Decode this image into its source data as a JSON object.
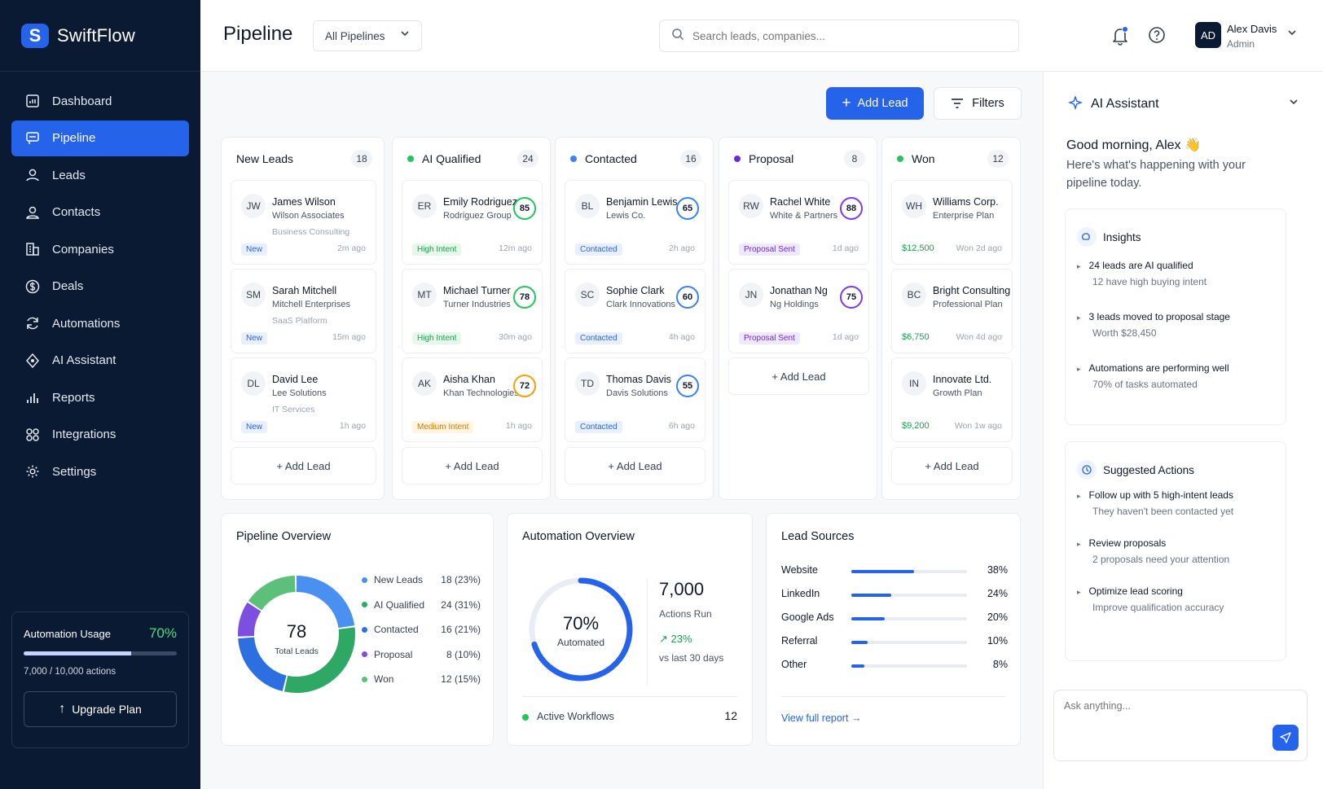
{
  "app": {
    "name": "SwiftFlow",
    "logo_letter": "S"
  },
  "sidebar": {
    "items": [
      {
        "label": "Dashboard",
        "icon": "dashboard-icon"
      },
      {
        "label": "Pipeline",
        "icon": "pipeline-icon",
        "active": true
      },
      {
        "label": "Leads",
        "icon": "leads-icon"
      },
      {
        "label": "Contacts",
        "icon": "contacts-icon"
      },
      {
        "label": "Companies",
        "icon": "companies-icon"
      },
      {
        "label": "Deals",
        "icon": "deals-icon"
      },
      {
        "label": "Automations",
        "icon": "automations-icon"
      },
      {
        "label": "AI Assistant",
        "icon": "ai-assistant-icon"
      },
      {
        "label": "Reports",
        "icon": "reports-icon"
      },
      {
        "label": "Integrations",
        "icon": "integrations-icon"
      },
      {
        "label": "Settings",
        "icon": "settings-icon"
      }
    ],
    "usage": {
      "title": "Automation Usage",
      "percent": "70%",
      "fraction": 0.7,
      "count": "7,000 / 10,000 actions",
      "upgrade_label": "Upgrade Plan"
    }
  },
  "header": {
    "title": "Pipeline",
    "pipeline_select": "All Pipelines",
    "search_placeholder": "Search leads, companies...",
    "user": {
      "initials": "AD",
      "name": "Alex Davis",
      "role": "Admin"
    }
  },
  "toolbar": {
    "add_lead": "Add Lead",
    "filters": "Filters"
  },
  "board": {
    "add_lead_label": "+ Add Lead",
    "columns": [
      {
        "title": "New Leads",
        "count": "18",
        "dot": "",
        "cards": [
          {
            "initials": "JW",
            "name": "James Wilson",
            "company": "Wilson Associates",
            "sub": "Business Consulting",
            "tag": "New",
            "time": "2m ago"
          },
          {
            "initials": "SM",
            "name": "Sarah Mitchell",
            "company": "Mitchell Enterprises",
            "sub": "SaaS Platform",
            "tag": "New",
            "time": "15m ago"
          },
          {
            "initials": "DL",
            "name": "David Lee",
            "company": "Lee Solutions",
            "sub": "IT Services",
            "tag": "New",
            "time": "1h ago"
          }
        ]
      },
      {
        "title": "AI Qualified",
        "count": "24",
        "dot": "#22c55e",
        "cards": [
          {
            "initials": "ER",
            "name": "Emily Rodriguez",
            "company": "Rodriguez Group",
            "score": "85",
            "ring": "#22c55e",
            "tag": "High Intent",
            "time": "12m ago"
          },
          {
            "initials": "MT",
            "name": "Michael Turner",
            "company": "Turner Industries",
            "score": "78",
            "ring": "#22c55e",
            "tag": "High Intent",
            "time": "30m ago"
          },
          {
            "initials": "AK",
            "name": "Aisha Khan",
            "company": "Khan Technologies",
            "score": "72",
            "ring": "#f59e0b",
            "tag": "Medium Intent",
            "time": "1h ago"
          }
        ]
      },
      {
        "title": "Contacted",
        "count": "16",
        "dot": "#3b82f6",
        "cards": [
          {
            "initials": "BL",
            "name": "Benjamin Lewis",
            "company": "Lewis Co.",
            "score": "65",
            "ring": "#3b82f6",
            "tag": "Contacted",
            "time": "2h ago"
          },
          {
            "initials": "SC",
            "name": "Sophie Clark",
            "company": "Clark Innovations",
            "score": "60",
            "ring": "#3b82f6",
            "tag": "Contacted",
            "time": "4h ago"
          },
          {
            "initials": "TD",
            "name": "Thomas Davis",
            "company": "Davis Solutions",
            "score": "55",
            "ring": "#3b82f6",
            "tag": "Contacted",
            "time": "6h ago"
          }
        ]
      },
      {
        "title": "Proposal",
        "count": "8",
        "dot": "#6d28d9",
        "cards": [
          {
            "initials": "RW",
            "name": "Rachel White",
            "company": "White & Partners",
            "score": "88",
            "ring": "#7c3aed",
            "tag": "Proposal Sent",
            "time": "1d ago"
          },
          {
            "initials": "JN",
            "name": "Jonathan Ng",
            "company": "Ng Holdings",
            "score": "75",
            "ring": "#7c3aed",
            "tag": "Proposal Sent",
            "time": "1d ago"
          }
        ]
      },
      {
        "title": "Won",
        "count": "12",
        "dot": "#22c55e",
        "cards": [
          {
            "initials": "WH",
            "name": "Williams Corp.",
            "company": "Enterprise Plan",
            "amount": "$12,500",
            "time": "Won 2d ago"
          },
          {
            "initials": "BC",
            "name": "Bright Consulting",
            "company": "Professional Plan",
            "amount": "$6,750",
            "time": "Won 4d ago"
          },
          {
            "initials": "IN",
            "name": "Innovate Ltd.",
            "company": "Growth Plan",
            "amount": "$9,200",
            "time": "Won 1w ago"
          }
        ]
      }
    ]
  },
  "pipeline_overview": {
    "title": "Pipeline Overview",
    "total": "78",
    "total_label": "Total Leads",
    "legend": [
      {
        "label": "New Leads",
        "value": "18 (23%)",
        "color": "#4a90f0"
      },
      {
        "label": "AI Qualified",
        "value": "24 (31%)",
        "color": "#2fa866"
      },
      {
        "label": "Contacted",
        "value": "16 (21%)",
        "color": "#2b6fe0"
      },
      {
        "label": "Proposal",
        "value": "8 (10%)",
        "color": "#7c4fe0"
      },
      {
        "label": "Won",
        "value": "12 (15%)",
        "color": "#5cc07a"
      }
    ]
  },
  "chart_data": {
    "type": "pie",
    "categories": [
      "New Leads",
      "AI Qualified",
      "Contacted",
      "Proposal",
      "Won"
    ],
    "values": [
      18,
      24,
      16,
      8,
      12
    ]
  },
  "automation_overview": {
    "title": "Automation Overview",
    "percent": "70%",
    "fraction": 0.7,
    "percent_label": "Automated",
    "actions": "7,000",
    "actions_label": "Actions Run",
    "change": "23%",
    "change_label": "vs last 30 days",
    "workflows_label": "Active Workflows",
    "workflows": "12"
  },
  "lead_sources": {
    "title": "Lead Sources",
    "items": [
      {
        "label": "Website",
        "value": "38%",
        "fraction": 0.38
      },
      {
        "label": "LinkedIn",
        "value": "24%",
        "fraction": 0.24
      },
      {
        "label": "Google Ads",
        "value": "20%",
        "fraction": 0.2
      },
      {
        "label": "Referral",
        "value": "10%",
        "fraction": 0.1
      },
      {
        "label": "Other",
        "value": "8%",
        "fraction": 0.08
      }
    ],
    "link": "View full report"
  },
  "ai_panel": {
    "title": "AI Assistant",
    "greeting": "Good morning, Alex 👋",
    "subtitle": "Here's what's happening with your pipeline today.",
    "insights_title": "Insights",
    "insights": [
      {
        "title": "24 leads are AI qualified",
        "detail": "12 have high buying intent"
      },
      {
        "title": "3 leads moved to proposal stage",
        "detail": "Worth $28,450"
      },
      {
        "title": "Automations are performing well",
        "detail": "70% of tasks automated"
      }
    ],
    "actions_title": "Suggested Actions",
    "actions": [
      {
        "title": "Follow up with 5 high-intent leads",
        "detail": "They haven't been contacted yet"
      },
      {
        "title": "Review proposals",
        "detail": "2 proposals need your attention"
      },
      {
        "title": "Optimize lead scoring",
        "detail": "Improve qualification accuracy"
      }
    ],
    "ask_placeholder": "Ask anything..."
  }
}
